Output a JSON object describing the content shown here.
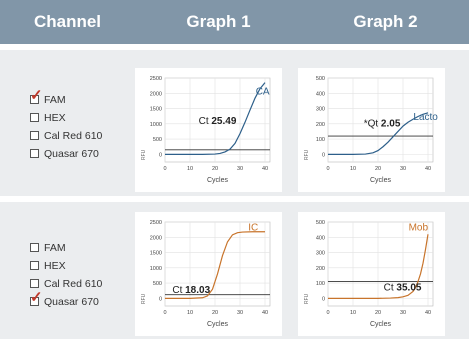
{
  "header": {
    "channel": "Channel",
    "graph1": "Graph 1",
    "graph2": "Graph 2"
  },
  "rows": [
    {
      "channels": [
        {
          "label": "FAM",
          "checked": true
        },
        {
          "label": "HEX",
          "checked": false
        },
        {
          "label": "Cal Red 610",
          "checked": false
        },
        {
          "label": "Quasar 670",
          "checked": false
        }
      ]
    },
    {
      "channels": [
        {
          "label": "FAM",
          "checked": false
        },
        {
          "label": "HEX",
          "checked": false
        },
        {
          "label": "Cal Red 610",
          "checked": false
        },
        {
          "label": "Quasar 670",
          "checked": true
        }
      ]
    }
  ],
  "colors": {
    "header_bg": "#8196a8",
    "row_bg": "#ebedef",
    "blue": "#2d5f8a",
    "orange": "#c8742b",
    "check": "#c0392b"
  },
  "chart_data": [
    {
      "type": "line",
      "id": "r1g1",
      "series_label": "CA",
      "color": "#2d5f8a",
      "ct_label": "Ct",
      "ct_value": "25.49",
      "threshold": 150,
      "xlabel": "Cycles",
      "ylabel": "RFU",
      "xlim": [
        0,
        42
      ],
      "ylim": [
        -250,
        2500
      ],
      "xticks": [
        0,
        10,
        20,
        30,
        40
      ],
      "yticks": [
        0,
        500,
        1000,
        1500,
        2000,
        2500
      ],
      "x": [
        0,
        5,
        10,
        15,
        20,
        22,
        24,
        26,
        28,
        30,
        32,
        34,
        36,
        38,
        40
      ],
      "y": [
        0,
        0,
        0,
        0,
        10,
        30,
        80,
        170,
        360,
        680,
        1050,
        1450,
        1840,
        2150,
        2350
      ]
    },
    {
      "type": "line",
      "id": "r1g2",
      "series_label": "Lacto",
      "color": "#2d5f8a",
      "ct_label": "*Qt",
      "ct_value": "2.05",
      "threshold": 120,
      "xlabel": "Cycles",
      "ylabel": "RFU",
      "xlim": [
        0,
        42
      ],
      "ylim": [
        -50,
        500
      ],
      "xticks": [
        0,
        10,
        20,
        30,
        40
      ],
      "yticks": [
        0,
        100,
        200,
        300,
        400,
        500
      ],
      "x": [
        0,
        5,
        10,
        15,
        18,
        20,
        22,
        24,
        26,
        28,
        30,
        32,
        34,
        36,
        38,
        40
      ],
      "y": [
        0,
        0,
        0,
        2,
        10,
        25,
        50,
        80,
        115,
        150,
        185,
        210,
        230,
        248,
        262,
        272
      ]
    },
    {
      "type": "line",
      "id": "r2g1",
      "series_label": "IC",
      "color": "#c8742b",
      "ct_label": "Ct",
      "ct_value": "18.03",
      "threshold": 120,
      "xlabel": "Cycles",
      "ylabel": "RFU",
      "xlim": [
        0,
        42
      ],
      "ylim": [
        -250,
        2500
      ],
      "xticks": [
        0,
        10,
        20,
        30,
        40
      ],
      "yticks": [
        0,
        500,
        1000,
        1500,
        2000,
        2500
      ],
      "x": [
        0,
        5,
        10,
        15,
        17,
        19,
        21,
        23,
        25,
        27,
        29,
        31,
        35,
        40
      ],
      "y": [
        0,
        0,
        0,
        20,
        80,
        300,
        800,
        1400,
        1850,
        2080,
        2150,
        2170,
        2180,
        2180
      ]
    },
    {
      "type": "line",
      "id": "r2g2",
      "series_label": "Mob",
      "color": "#c8742b",
      "ct_label": "Ct",
      "ct_value": "35.05",
      "threshold": 110,
      "xlabel": "Cycles",
      "ylabel": "RFU",
      "xlim": [
        0,
        42
      ],
      "ylim": [
        -50,
        500
      ],
      "xticks": [
        0,
        10,
        20,
        30,
        40
      ],
      "yticks": [
        0,
        100,
        200,
        300,
        400,
        500
      ],
      "x": [
        0,
        10,
        20,
        25,
        28,
        30,
        32,
        34,
        35,
        36,
        37,
        38,
        39,
        40
      ],
      "y": [
        0,
        0,
        0,
        2,
        5,
        10,
        20,
        45,
        70,
        110,
        160,
        230,
        320,
        420
      ]
    }
  ]
}
